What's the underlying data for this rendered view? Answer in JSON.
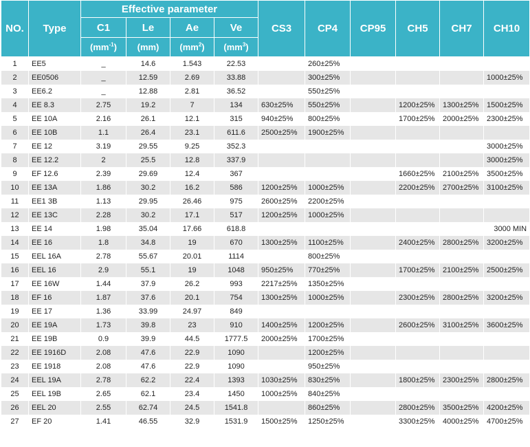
{
  "header": {
    "no": "NO.",
    "type": "Type",
    "effective_parameter": "Effective parameter",
    "c1": "C1",
    "le": "Le",
    "ae": "Ae",
    "ve": "Ve",
    "unit_c1_base": "(mm",
    "unit_c1_sup": "-1",
    "unit_c1_end": ")",
    "unit_le": "(mm)",
    "unit_ae_base": "(mm",
    "unit_ae_sup": "2",
    "unit_ae_end": ")",
    "unit_ve_base": "(mm",
    "unit_ve_sup": "3",
    "unit_ve_end": ")",
    "cs3": "CS3",
    "cp4": "CP4",
    "cp95": "CP95",
    "ch5": "CH5",
    "ch7": "CH7",
    "ch10": "CH10"
  },
  "rows": [
    {
      "no": "1",
      "type": "EE5",
      "c1": "_",
      "le": "14.6",
      "ae": "1.543",
      "ve": "22.53",
      "cs3": "",
      "cp4": "260±25%",
      "cp95": "",
      "ch5": "",
      "ch7": "",
      "ch10": ""
    },
    {
      "no": "2",
      "type": "EE0506",
      "c1": "_",
      "le": "12.59",
      "ae": "2.69",
      "ve": "33.88",
      "cs3": "",
      "cp4": "300±25%",
      "cp95": "",
      "ch5": "",
      "ch7": "",
      "ch10": "1000±25%"
    },
    {
      "no": "3",
      "type": "EE6.2",
      "c1": "_",
      "le": "12.88",
      "ae": "2.81",
      "ve": "36.52",
      "cs3": "",
      "cp4": "550±25%",
      "cp95": "",
      "ch5": "",
      "ch7": "",
      "ch10": ""
    },
    {
      "no": "4",
      "type": "EE 8.3",
      "c1": "2.75",
      "le": "19.2",
      "ae": "7",
      "ve": "134",
      "cs3": "630±25%",
      "cp4": "550±25%",
      "cp95": "",
      "ch5": "1200±25%",
      "ch7": "1300±25%",
      "ch10": "1500±25%"
    },
    {
      "no": "5",
      "type": "EE 10A",
      "c1": "2.16",
      "le": "26.1",
      "ae": "12.1",
      "ve": "315",
      "cs3": "940±25%",
      "cp4": "800±25%",
      "cp95": "",
      "ch5": "1700±25%",
      "ch7": "2000±25%",
      "ch10": "2300±25%"
    },
    {
      "no": "6",
      "type": "EE 10B",
      "c1": "1.1",
      "le": "26.4",
      "ae": "23.1",
      "ve": "611.6",
      "cs3": "2500±25%",
      "cp4": "1900±25%",
      "cp95": "",
      "ch5": "",
      "ch7": "",
      "ch10": ""
    },
    {
      "no": "7",
      "type": "EE 12",
      "c1": "3.19",
      "le": "29.55",
      "ae": "9.25",
      "ve": "352.3",
      "cs3": "",
      "cp4": "",
      "cp95": "",
      "ch5": "",
      "ch7": "",
      "ch10": "3000±25%"
    },
    {
      "no": "8",
      "type": "EE 12.2",
      "c1": "2",
      "le": "25.5",
      "ae": "12.8",
      "ve": "337.9",
      "cs3": "",
      "cp4": "",
      "cp95": "",
      "ch5": "",
      "ch7": "",
      "ch10": "3000±25%"
    },
    {
      "no": "9",
      "type": "EF 12.6",
      "c1": "2.39",
      "le": "29.69",
      "ae": "12.4",
      "ve": "367",
      "cs3": "",
      "cp4": "",
      "cp95": "",
      "ch5": "1660±25%",
      "ch7": "2100±25%",
      "ch10": "3500±25%"
    },
    {
      "no": "10",
      "type": "EE 13A",
      "c1": "1.86",
      "le": "30.2",
      "ae": "16.2",
      "ve": "586",
      "cs3": "1200±25%",
      "cp4": "1000±25%",
      "cp95": "",
      "ch5": "2200±25%",
      "ch7": "2700±25%",
      "ch10": "3100±25%"
    },
    {
      "no": "11",
      "type": "EE1 3B",
      "c1": "1.13",
      "le": "29.95",
      "ae": "26.46",
      "ve": "975",
      "cs3": "2600±25%",
      "cp4": "2200±25%",
      "cp95": "",
      "ch5": "",
      "ch7": "",
      "ch10": ""
    },
    {
      "no": "12",
      "type": "EE 13C",
      "c1": "2.28",
      "le": "30.2",
      "ae": "17.1",
      "ve": "517",
      "cs3": "1200±25%",
      "cp4": "1000±25%",
      "cp95": "",
      "ch5": "",
      "ch7": "",
      "ch10": ""
    },
    {
      "no": "13",
      "type": "EE 14",
      "c1": "1.98",
      "le": "35.04",
      "ae": "17.66",
      "ve": "618.8",
      "cs3": "",
      "cp4": "",
      "cp95": "",
      "ch5": "",
      "ch7": "",
      "ch10": "3000 MIN"
    },
    {
      "no": "14",
      "type": "EE 16",
      "c1": "1.8",
      "le": "34.8",
      "ae": "19",
      "ve": "670",
      "cs3": "1300±25%",
      "cp4": "1100±25%",
      "cp95": "",
      "ch5": "2400±25%",
      "ch7": "2800±25%",
      "ch10": "3200±25%"
    },
    {
      "no": "15",
      "type": "EEL 16A",
      "c1": "2.78",
      "le": "55.67",
      "ae": "20.01",
      "ve": "1114",
      "cs3": "",
      "cp4": "800±25%",
      "cp95": "",
      "ch5": "",
      "ch7": "",
      "ch10": ""
    },
    {
      "no": "16",
      "type": "EEL 16",
      "c1": "2.9",
      "le": "55.1",
      "ae": "19",
      "ve": "1048",
      "cs3": "950±25%",
      "cp4": "770±25%",
      "cp95": "",
      "ch5": "1700±25%",
      "ch7": "2100±25%",
      "ch10": "2500±25%"
    },
    {
      "no": "17",
      "type": "EE 16W",
      "c1": "1.44",
      "le": "37.9",
      "ae": "26.2",
      "ve": "993",
      "cs3": "2217±25%",
      "cp4": "1350±25%",
      "cp95": "",
      "ch5": "",
      "ch7": "",
      "ch10": ""
    },
    {
      "no": "18",
      "type": "EF 16",
      "c1": "1.87",
      "le": "37.6",
      "ae": "20.1",
      "ve": "754",
      "cs3": "1300±25%",
      "cp4": "1000±25%",
      "cp95": "",
      "ch5": "2300±25%",
      "ch7": "2800±25%",
      "ch10": "3200±25%"
    },
    {
      "no": "19",
      "type": "EE 17",
      "c1": "1.36",
      "le": "33.99",
      "ae": "24.97",
      "ve": "849",
      "cs3": "",
      "cp4": "",
      "cp95": "",
      "ch5": "",
      "ch7": "",
      "ch10": ""
    },
    {
      "no": "20",
      "type": "EE 19A",
      "c1": "1.73",
      "le": "39.8",
      "ae": "23",
      "ve": "910",
      "cs3": "1400±25%",
      "cp4": "1200±25%",
      "cp95": "",
      "ch5": "2600±25%",
      "ch7": "3100±25%",
      "ch10": "3600±25%"
    },
    {
      "no": "21",
      "type": "EE 19B",
      "c1": "0.9",
      "le": "39.9",
      "ae": "44.5",
      "ve": "1777.5",
      "cs3": "2000±25%",
      "cp4": "1700±25%",
      "cp95": "",
      "ch5": "",
      "ch7": "",
      "ch10": ""
    },
    {
      "no": "22",
      "type": "EE 1916D",
      "c1": "2.08",
      "le": "47.6",
      "ae": "22.9",
      "ve": "1090",
      "cs3": "",
      "cp4": "1200±25%",
      "cp95": "",
      "ch5": "",
      "ch7": "",
      "ch10": ""
    },
    {
      "no": "23",
      "type": "EE 1918",
      "c1": "2.08",
      "le": "47.6",
      "ae": "22.9",
      "ve": "1090",
      "cs3": "",
      "cp4": "950±25%",
      "cp95": "",
      "ch5": "",
      "ch7": "",
      "ch10": ""
    },
    {
      "no": "24",
      "type": "EEL 19A",
      "c1": "2.78",
      "le": "62.2",
      "ae": "22.4",
      "ve": "1393",
      "cs3": "1030±25%",
      "cp4": "830±25%",
      "cp95": "",
      "ch5": "1800±25%",
      "ch7": "2300±25%",
      "ch10": "2800±25%"
    },
    {
      "no": "25",
      "type": "EEL 19B",
      "c1": "2.65",
      "le": "62.1",
      "ae": "23.4",
      "ve": "1450",
      "cs3": "1000±25%",
      "cp4": "840±25%",
      "cp95": "",
      "ch5": "",
      "ch7": "",
      "ch10": ""
    },
    {
      "no": "26",
      "type": "EEL 20",
      "c1": "2.55",
      "le": "62.74",
      "ae": "24.5",
      "ve": "1541.8",
      "cs3": "",
      "cp4": "860±25%",
      "cp95": "",
      "ch5": "2800±25%",
      "ch7": "3500±25%",
      "ch10": "4200±25%"
    },
    {
      "no": "27",
      "type": "EF 20",
      "c1": "1.41",
      "le": "46.55",
      "ae": "32.9",
      "ve": "1531.9",
      "cs3": "1500±25%",
      "cp4": "1250±25%",
      "cp95": "",
      "ch5": "3300±25%",
      "ch7": "4000±25%",
      "ch10": "4700±25%"
    }
  ],
  "colors": {
    "header_bg": "#3bb3c7",
    "header_text": "#ffffff",
    "row_alt_bg": "#e6e6e6",
    "body_text": "#222222"
  }
}
